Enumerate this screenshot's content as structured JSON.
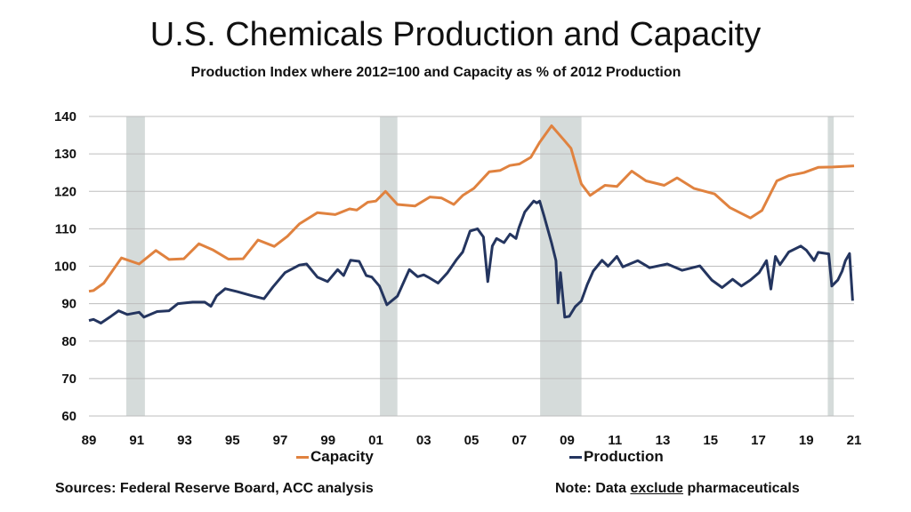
{
  "chart_data": {
    "type": "line",
    "title": "U.S. Chemicals Production and Capacity",
    "subtitle": "Production Index where 2012=100 and Capacity as % of 2012 Production",
    "xlabel": "",
    "ylabel": "",
    "xlim": [
      1989,
      2021
    ],
    "ylim": [
      60,
      140
    ],
    "grid": true,
    "legend_placement": "bottom",
    "x_tick_values": [
      1989,
      1991,
      1993,
      1995,
      1997,
      1999,
      2001,
      2003,
      2005,
      2007,
      2009,
      2011,
      2013,
      2015,
      2017,
      2019,
      2021
    ],
    "x_tick_labels": [
      "89",
      "91",
      "93",
      "95",
      "97",
      "99",
      "01",
      "03",
      "05",
      "07",
      "09",
      "11",
      "13",
      "15",
      "17",
      "19",
      "21"
    ],
    "y_ticks": [
      60,
      70,
      80,
      90,
      100,
      110,
      120,
      130,
      140
    ],
    "recession_shading": [
      [
        1990.56,
        1991.34
      ],
      [
        2001.17,
        2001.9
      ],
      [
        2007.87,
        2009.6
      ],
      [
        2019.9,
        2020.15
      ]
    ],
    "colors": {
      "capacity": "#E0823F",
      "production": "#24355F",
      "recession": "#D5DBDA",
      "grid": "#BDBDBD"
    },
    "series": [
      {
        "name": "Capacity",
        "points": [
          [
            1989.0,
            93.3
          ],
          [
            1989.19,
            93.5
          ],
          [
            1989.62,
            95.5
          ],
          [
            1990.36,
            102.2
          ],
          [
            1991.1,
            100.6
          ],
          [
            1991.8,
            104.2
          ],
          [
            1992.35,
            101.8
          ],
          [
            1992.97,
            102
          ],
          [
            1993.6,
            106
          ],
          [
            1994.2,
            104.3
          ],
          [
            1994.83,
            101.9
          ],
          [
            1995.45,
            102
          ],
          [
            1996.07,
            107
          ],
          [
            1996.75,
            105.3
          ],
          [
            1997.3,
            108
          ],
          [
            1997.8,
            111.3
          ],
          [
            1998.55,
            114.3
          ],
          [
            1999.3,
            113.8
          ],
          [
            1999.9,
            115.3
          ],
          [
            2000.2,
            115
          ],
          [
            2000.66,
            117.1
          ],
          [
            2001.0,
            117.4
          ],
          [
            2001.4,
            120
          ],
          [
            2001.9,
            116.5
          ],
          [
            2002.64,
            116.1
          ],
          [
            2003.26,
            118.5
          ],
          [
            2003.75,
            118.2
          ],
          [
            2004.26,
            116.5
          ],
          [
            2004.63,
            118.9
          ],
          [
            2005.1,
            120.8
          ],
          [
            2005.74,
            125.2
          ],
          [
            2006.2,
            125.6
          ],
          [
            2006.6,
            126.9
          ],
          [
            2007.0,
            127.3
          ],
          [
            2007.48,
            129.1
          ],
          [
            2007.85,
            133.1
          ],
          [
            2008.35,
            137.5
          ],
          [
            2008.84,
            133.9
          ],
          [
            2009.16,
            131.5
          ],
          [
            2009.59,
            122
          ],
          [
            2009.96,
            118.9
          ],
          [
            2010.58,
            121.6
          ],
          [
            2011.08,
            121.3
          ],
          [
            2011.7,
            125.4
          ],
          [
            2012.3,
            122.8
          ],
          [
            2013.06,
            121.6
          ],
          [
            2013.6,
            123.6
          ],
          [
            2014.3,
            120.8
          ],
          [
            2015.17,
            119.3
          ],
          [
            2015.8,
            115.7
          ],
          [
            2016.66,
            112.9
          ],
          [
            2017.15,
            114.9
          ],
          [
            2017.77,
            122.8
          ],
          [
            2018.27,
            124.2
          ],
          [
            2018.9,
            125
          ],
          [
            2019.5,
            126.4
          ],
          [
            2020.1,
            126.5
          ],
          [
            2021.0,
            126.8
          ]
        ]
      },
      {
        "name": "Production",
        "points": [
          [
            1989.0,
            85.5
          ],
          [
            1989.19,
            85.8
          ],
          [
            1989.5,
            84.8
          ],
          [
            1989.87,
            86.4
          ],
          [
            1990.24,
            88.1
          ],
          [
            1990.6,
            87.1
          ],
          [
            1991.1,
            87.7
          ],
          [
            1991.3,
            86.4
          ],
          [
            1991.85,
            87.9
          ],
          [
            1992.35,
            88.1
          ],
          [
            1992.72,
            90
          ],
          [
            1993.34,
            90.4
          ],
          [
            1993.84,
            90.4
          ],
          [
            1994.1,
            89.3
          ],
          [
            1994.34,
            92.1
          ],
          [
            1994.7,
            94
          ],
          [
            1995.2,
            93.2
          ],
          [
            1995.83,
            92.1
          ],
          [
            1996.32,
            91.3
          ],
          [
            1996.7,
            94.5
          ],
          [
            1997.2,
            98.3
          ],
          [
            1997.8,
            100.3
          ],
          [
            1998.1,
            100.6
          ],
          [
            1998.55,
            97.1
          ],
          [
            1998.98,
            95.9
          ],
          [
            1999.4,
            99.1
          ],
          [
            1999.65,
            97.5
          ],
          [
            1999.94,
            101.6
          ],
          [
            2000.3,
            101.3
          ],
          [
            2000.6,
            97.5
          ],
          [
            2000.83,
            97.1
          ],
          [
            2001.15,
            94.7
          ],
          [
            2001.46,
            89.7
          ],
          [
            2001.9,
            92
          ],
          [
            2002.4,
            99.1
          ],
          [
            2002.75,
            97.2
          ],
          [
            2003.0,
            97.7
          ],
          [
            2003.24,
            96.9
          ],
          [
            2003.6,
            95.5
          ],
          [
            2004.0,
            98.3
          ],
          [
            2004.38,
            101.8
          ],
          [
            2004.63,
            103.8
          ],
          [
            2004.94,
            109.4
          ],
          [
            2005.25,
            110
          ],
          [
            2005.5,
            107.8
          ],
          [
            2005.68,
            95.9
          ],
          [
            2005.87,
            105.4
          ],
          [
            2006.05,
            107.4
          ],
          [
            2006.36,
            106.3
          ],
          [
            2006.61,
            108.6
          ],
          [
            2006.86,
            107.4
          ],
          [
            2006.98,
            110.2
          ],
          [
            2007.23,
            114.5
          ],
          [
            2007.6,
            117.4
          ],
          [
            2007.73,
            116.9
          ],
          [
            2007.85,
            117.4
          ],
          [
            2008.04,
            113.3
          ],
          [
            2008.35,
            106.2
          ],
          [
            2008.53,
            101.5
          ],
          [
            2008.62,
            90.2
          ],
          [
            2008.72,
            98.3
          ],
          [
            2008.9,
            86.4
          ],
          [
            2009.09,
            86.6
          ],
          [
            2009.34,
            89.2
          ],
          [
            2009.59,
            90.7
          ],
          [
            2009.84,
            95.1
          ],
          [
            2010.09,
            98.7
          ],
          [
            2010.46,
            101.6
          ],
          [
            2010.71,
            100
          ],
          [
            2011.08,
            102.6
          ],
          [
            2011.33,
            99.8
          ],
          [
            2011.95,
            101.5
          ],
          [
            2012.45,
            99.6
          ],
          [
            2013.19,
            100.6
          ],
          [
            2013.81,
            98.9
          ],
          [
            2014.55,
            100.1
          ],
          [
            2015.05,
            96.3
          ],
          [
            2015.48,
            94.3
          ],
          [
            2015.92,
            96.5
          ],
          [
            2016.29,
            94.7
          ],
          [
            2016.66,
            96.3
          ],
          [
            2017.03,
            98.3
          ],
          [
            2017.34,
            101.5
          ],
          [
            2017.52,
            93.9
          ],
          [
            2017.71,
            102.6
          ],
          [
            2017.9,
            100.4
          ],
          [
            2018.27,
            103.8
          ],
          [
            2018.77,
            105.4
          ],
          [
            2019.0,
            104.3
          ],
          [
            2019.33,
            101.5
          ],
          [
            2019.5,
            103.7
          ],
          [
            2019.94,
            103.3
          ],
          [
            2020.07,
            94.7
          ],
          [
            2020.32,
            96.3
          ],
          [
            2020.5,
            98.7
          ],
          [
            2020.64,
            101.5
          ],
          [
            2020.81,
            103.4
          ],
          [
            2020.94,
            90.8
          ]
        ]
      }
    ]
  },
  "footer": {
    "sources": "Sources: Federal Reserve Board, ACC analysis",
    "note_prefix": "Note: Data ",
    "note_emphasis": "exclude",
    "note_suffix": " pharmaceuticals"
  }
}
